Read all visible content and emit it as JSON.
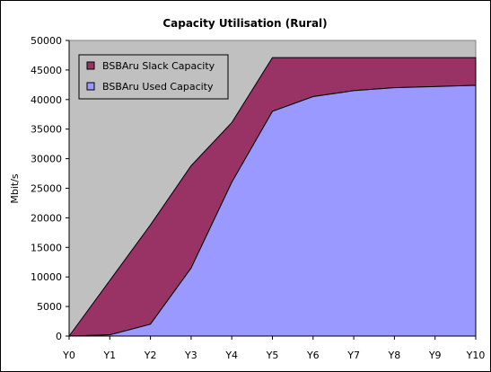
{
  "chart_data": {
    "type": "area",
    "title": "Capacity Utilisation (Rural)",
    "ylabel": "Mbit/s",
    "xlabel": "",
    "categories": [
      "Y0",
      "Y1",
      "Y2",
      "Y3",
      "Y4",
      "Y5",
      "Y6",
      "Y7",
      "Y8",
      "Y9",
      "Y10"
    ],
    "ylim": [
      0,
      50000
    ],
    "yticks": [
      0,
      5000,
      10000,
      15000,
      20000,
      25000,
      30000,
      35000,
      40000,
      45000,
      50000
    ],
    "stacked": true,
    "series": [
      {
        "name": "BSBAru Used Capacity",
        "color": "#9999ff",
        "values": [
          0,
          200,
          2000,
          11500,
          26000,
          38000,
          40500,
          41500,
          42000,
          42200,
          42400
        ]
      },
      {
        "name": "BSBAru Slack Capacity",
        "color": "#993366",
        "values": [
          0,
          9200,
          16800,
          17300,
          10100,
          9100,
          6600,
          5600,
          5100,
          4900,
          4700
        ]
      }
    ],
    "legend": {
      "position": "top-left",
      "entries": [
        "BSBAru Slack Capacity",
        "BSBAru Used Capacity"
      ]
    },
    "grid": false,
    "plot_background": "#c0c0c0"
  }
}
